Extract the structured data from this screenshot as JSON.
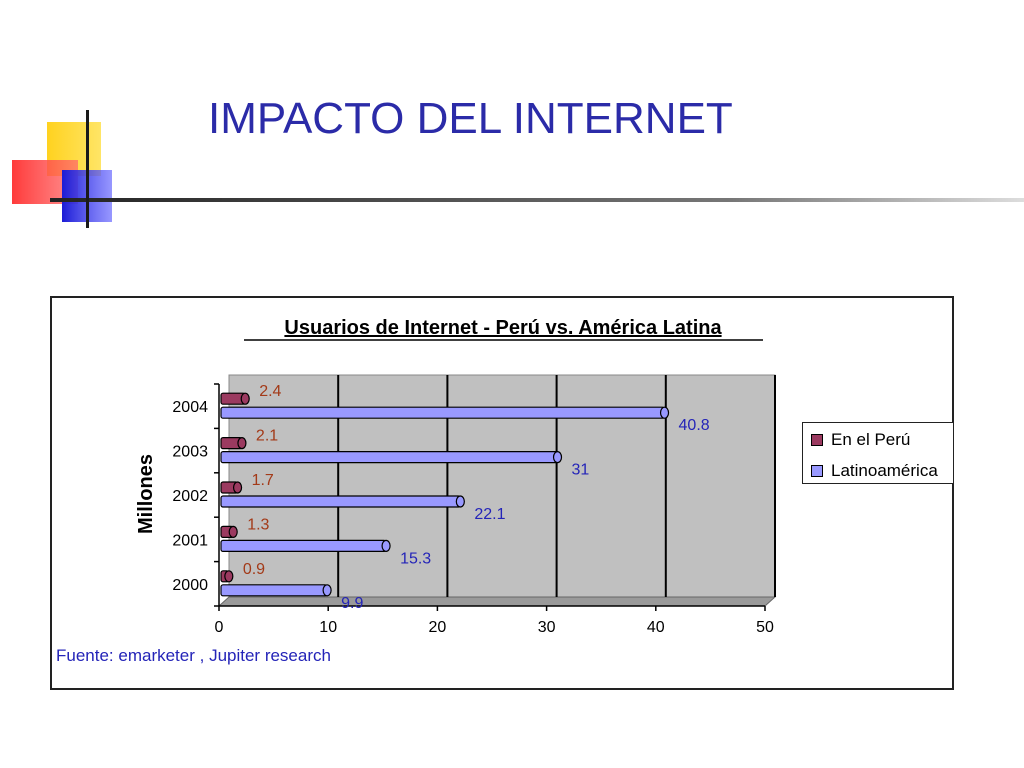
{
  "slide": {
    "title": "IMPACTO DEL INTERNET",
    "source": "Fuente: emarketer , Jupiter research"
  },
  "colors": {
    "title": "#2b2ba8",
    "peru_bar": "#9b3a60",
    "latam_bar": "#9999ff",
    "peru_label": "#a33a18",
    "latam_label": "#2424b8",
    "plot_bg": "#c0c0c0"
  },
  "chart_data": {
    "type": "bar",
    "orientation": "horizontal",
    "title": "Usuarios de Internet - Perú vs. América Latina",
    "xlabel": "",
    "ylabel": "Millones",
    "categories": [
      "2000",
      "2001",
      "2002",
      "2003",
      "2004"
    ],
    "series": [
      {
        "name": "En el Perú",
        "values": [
          0.9,
          1.3,
          1.7,
          2.1,
          2.4
        ]
      },
      {
        "name": "Latinoamérica",
        "values": [
          9.9,
          15.3,
          22.1,
          31,
          40.8
        ]
      }
    ],
    "xlim": [
      0,
      50
    ],
    "xticks": [
      "0",
      "10",
      "20",
      "30",
      "40",
      "50"
    ],
    "grid": true,
    "legend": "right"
  }
}
